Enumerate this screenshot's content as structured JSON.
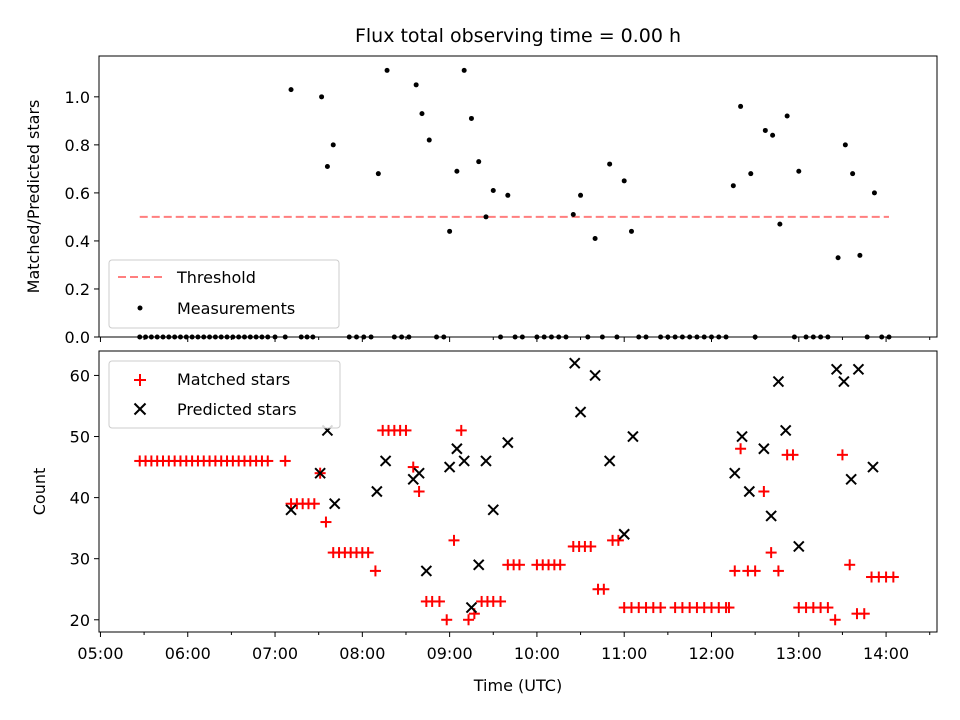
{
  "chart_data": [
    {
      "type": "scatter",
      "title": "Flux total observing time = 0.00 h",
      "xlabel": "",
      "ylabel": "Matched/Predicted stars",
      "ylim": [
        0,
        1.17
      ],
      "yticks": [
        "0.0",
        "0.2",
        "0.4",
        "0.6",
        "0.8",
        "1.0"
      ],
      "threshold": {
        "name": "Threshold",
        "value": 0.5,
        "x_start": "05:27",
        "x_end": "14:02",
        "color": "#ff7f7f"
      },
      "legend": {
        "placement": "lower-left",
        "entries": [
          "Threshold",
          "Measurements"
        ]
      },
      "series": [
        {
          "name": "Measurements",
          "color": "#000000",
          "points": [
            [
              "07:11",
              1.03
            ],
            [
              "07:32",
              1.0
            ],
            [
              "07:36",
              0.71
            ],
            [
              "07:40",
              0.8
            ],
            [
              "08:11",
              0.68
            ],
            [
              "08:17",
              1.11
            ],
            [
              "08:37",
              1.05
            ],
            [
              "08:41",
              0.93
            ],
            [
              "08:46",
              0.82
            ],
            [
              "09:00",
              0.44
            ],
            [
              "09:05",
              0.69
            ],
            [
              "09:10",
              1.11
            ],
            [
              "09:15",
              0.91
            ],
            [
              "09:20",
              0.73
            ],
            [
              "09:25",
              0.5
            ],
            [
              "09:30",
              0.61
            ],
            [
              "09:40",
              0.59
            ],
            [
              "10:25",
              0.51
            ],
            [
              "10:30",
              0.59
            ],
            [
              "10:40",
              0.41
            ],
            [
              "10:50",
              0.72
            ],
            [
              "11:00",
              0.65
            ],
            [
              "11:05",
              0.44
            ],
            [
              "12:15",
              0.63
            ],
            [
              "12:20",
              0.96
            ],
            [
              "12:27",
              0.68
            ],
            [
              "12:37",
              0.86
            ],
            [
              "12:42",
              0.84
            ],
            [
              "12:47",
              0.47
            ],
            [
              "12:52",
              0.92
            ],
            [
              "13:00",
              0.69
            ],
            [
              "13:27",
              0.33
            ],
            [
              "13:32",
              0.8
            ],
            [
              "13:37",
              0.68
            ],
            [
              "13:42",
              0.34
            ],
            [
              "13:52",
              0.6
            ]
          ],
          "zero_points": [
            "05:27",
            "05:31",
            "05:35",
            "05:39",
            "05:43",
            "05:47",
            "05:51",
            "05:55",
            "05:59",
            "06:03",
            "06:07",
            "06:11",
            "06:15",
            "06:19",
            "06:23",
            "06:27",
            "06:31",
            "06:35",
            "06:39",
            "06:43",
            "06:47",
            "06:51",
            "06:55",
            "07:00",
            "07:07",
            "07:18",
            "07:22",
            "07:26",
            "07:51",
            "07:56",
            "08:01",
            "08:06",
            "08:22",
            "08:27",
            "08:32",
            "08:51",
            "08:56",
            "09:35",
            "09:45",
            "09:50",
            "10:00",
            "10:05",
            "10:10",
            "10:15",
            "10:20",
            "10:35",
            "10:45",
            "10:55",
            "11:10",
            "11:15",
            "11:25",
            "11:30",
            "11:35",
            "11:40",
            "11:45",
            "11:50",
            "11:55",
            "12:00",
            "12:05",
            "12:10",
            "12:30",
            "12:57",
            "13:05",
            "13:10",
            "13:15",
            "13:20",
            "13:47",
            "13:57",
            "14:02"
          ]
        }
      ]
    },
    {
      "type": "scatter",
      "title": "",
      "xlabel": "Time (UTC)",
      "ylabel": "Count",
      "ylim": [
        18,
        64
      ],
      "yticks": [
        "20",
        "30",
        "40",
        "50",
        "60"
      ],
      "xticks": [
        "05:00",
        "06:00",
        "07:00",
        "08:00",
        "09:00",
        "10:00",
        "11:00",
        "12:00",
        "13:00",
        "14:00"
      ],
      "legend": {
        "placement": "upper-left",
        "entries": [
          "Matched stars",
          "Predicted stars"
        ]
      },
      "series": [
        {
          "name": "Matched stars",
          "marker": "plus",
          "color": "#ff0000",
          "points": [
            [
              "05:27",
              46
            ],
            [
              "05:31",
              46
            ],
            [
              "05:35",
              46
            ],
            [
              "05:39",
              46
            ],
            [
              "05:43",
              46
            ],
            [
              "05:47",
              46
            ],
            [
              "05:51",
              46
            ],
            [
              "05:55",
              46
            ],
            [
              "05:59",
              46
            ],
            [
              "06:03",
              46
            ],
            [
              "06:07",
              46
            ],
            [
              "06:11",
              46
            ],
            [
              "06:15",
              46
            ],
            [
              "06:19",
              46
            ],
            [
              "06:23",
              46
            ],
            [
              "06:27",
              46
            ],
            [
              "06:31",
              46
            ],
            [
              "06:35",
              46
            ],
            [
              "06:39",
              46
            ],
            [
              "06:43",
              46
            ],
            [
              "06:47",
              46
            ],
            [
              "06:51",
              46
            ],
            [
              "06:55",
              46
            ],
            [
              "07:07",
              46
            ],
            [
              "07:11",
              39
            ],
            [
              "07:15",
              39
            ],
            [
              "07:19",
              39
            ],
            [
              "07:23",
              39
            ],
            [
              "07:27",
              39
            ],
            [
              "07:31",
              44
            ],
            [
              "07:35",
              36
            ],
            [
              "07:40",
              31
            ],
            [
              "07:44",
              31
            ],
            [
              "07:48",
              31
            ],
            [
              "07:52",
              31
            ],
            [
              "07:56",
              31
            ],
            [
              "08:00",
              31
            ],
            [
              "08:04",
              31
            ],
            [
              "08:09",
              28
            ],
            [
              "08:14",
              51
            ],
            [
              "08:18",
              51
            ],
            [
              "08:22",
              51
            ],
            [
              "08:26",
              51
            ],
            [
              "08:30",
              51
            ],
            [
              "08:35",
              45
            ],
            [
              "08:39",
              41
            ],
            [
              "08:44",
              23
            ],
            [
              "08:48",
              23
            ],
            [
              "08:53",
              23
            ],
            [
              "08:58",
              20
            ],
            [
              "09:03",
              33
            ],
            [
              "09:08",
              51
            ],
            [
              "09:13",
              20
            ],
            [
              "09:17",
              21
            ],
            [
              "09:22",
              23
            ],
            [
              "09:26",
              23
            ],
            [
              "09:30",
              23
            ],
            [
              "09:35",
              23
            ],
            [
              "09:40",
              29
            ],
            [
              "09:44",
              29
            ],
            [
              "09:48",
              29
            ],
            [
              "10:00",
              29
            ],
            [
              "10:04",
              29
            ],
            [
              "10:08",
              29
            ],
            [
              "10:12",
              29
            ],
            [
              "10:16",
              29
            ],
            [
              "10:25",
              32
            ],
            [
              "10:29",
              32
            ],
            [
              "10:33",
              32
            ],
            [
              "10:37",
              32
            ],
            [
              "10:42",
              25
            ],
            [
              "10:46",
              25
            ],
            [
              "10:52",
              33
            ],
            [
              "10:56",
              33
            ],
            [
              "11:00",
              22
            ],
            [
              "11:05",
              22
            ],
            [
              "11:10",
              22
            ],
            [
              "11:15",
              22
            ],
            [
              "11:20",
              22
            ],
            [
              "11:25",
              22
            ],
            [
              "11:35",
              22
            ],
            [
              "11:40",
              22
            ],
            [
              "11:45",
              22
            ],
            [
              "11:50",
              22
            ],
            [
              "11:55",
              22
            ],
            [
              "12:00",
              22
            ],
            [
              "12:05",
              22
            ],
            [
              "12:10",
              22
            ],
            [
              "12:12",
              22
            ],
            [
              "12:16",
              28
            ],
            [
              "12:20",
              48
            ],
            [
              "12:25",
              28
            ],
            [
              "12:30",
              28
            ],
            [
              "12:36",
              41
            ],
            [
              "12:41",
              31
            ],
            [
              "12:46",
              28
            ],
            [
              "12:52",
              47
            ],
            [
              "12:56",
              47
            ],
            [
              "13:00",
              22
            ],
            [
              "13:05",
              22
            ],
            [
              "13:10",
              22
            ],
            [
              "13:15",
              22
            ],
            [
              "13:20",
              22
            ],
            [
              "13:25",
              20
            ],
            [
              "13:30",
              47
            ],
            [
              "13:35",
              29
            ],
            [
              "13:40",
              21
            ],
            [
              "13:45",
              21
            ],
            [
              "13:50",
              27
            ],
            [
              "13:55",
              27
            ],
            [
              "14:00",
              27
            ],
            [
              "14:05",
              27
            ]
          ]
        },
        {
          "name": "Predicted stars",
          "marker": "x",
          "color": "#000000",
          "points": [
            [
              "07:11",
              38
            ],
            [
              "07:31",
              44
            ],
            [
              "07:36",
              51
            ],
            [
              "07:41",
              39
            ],
            [
              "08:10",
              41
            ],
            [
              "08:16",
              46
            ],
            [
              "08:35",
              43
            ],
            [
              "08:39",
              44
            ],
            [
              "08:44",
              28
            ],
            [
              "09:00",
              45
            ],
            [
              "09:05",
              48
            ],
            [
              "09:10",
              46
            ],
            [
              "09:15",
              22
            ],
            [
              "09:20",
              29
            ],
            [
              "09:25",
              46
            ],
            [
              "09:30",
              38
            ],
            [
              "09:40",
              49
            ],
            [
              "10:26",
              62
            ],
            [
              "10:30",
              54
            ],
            [
              "10:40",
              60
            ],
            [
              "10:50",
              46
            ],
            [
              "11:00",
              34
            ],
            [
              "11:06",
              50
            ],
            [
              "12:16",
              44
            ],
            [
              "12:21",
              50
            ],
            [
              "12:26",
              41
            ],
            [
              "12:36",
              48
            ],
            [
              "12:41",
              37
            ],
            [
              "12:46",
              59
            ],
            [
              "12:51",
              51
            ],
            [
              "13:00",
              32
            ],
            [
              "13:26",
              61
            ],
            [
              "13:31",
              59
            ],
            [
              "13:36",
              43
            ],
            [
              "13:41",
              61
            ],
            [
              "13:51",
              45
            ]
          ]
        }
      ]
    }
  ]
}
